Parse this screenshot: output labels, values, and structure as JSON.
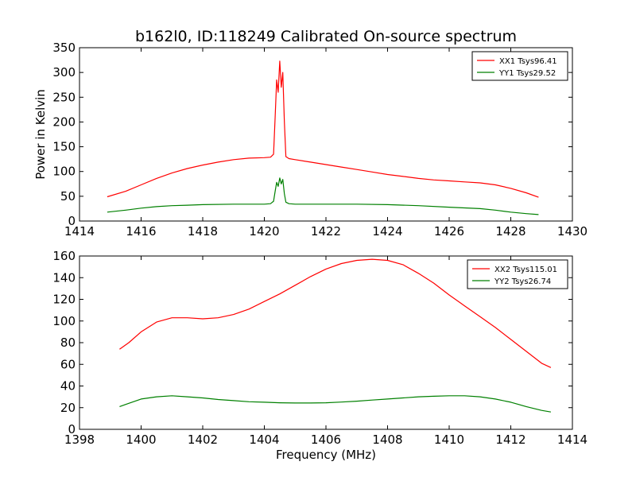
{
  "figure_title": "b162l0, ID:118249 Calibrated On-source spectrum",
  "chart_data": [
    {
      "type": "line",
      "title": "b162l0, ID:118249 Calibrated On-source spectrum",
      "xlabel": "",
      "ylabel": "Power in Kelvin",
      "xlim": [
        1414,
        1430
      ],
      "ylim": [
        0,
        350
      ],
      "xticks": [
        1414,
        1416,
        1418,
        1420,
        1422,
        1424,
        1426,
        1428,
        1430
      ],
      "yticks": [
        0,
        50,
        100,
        150,
        200,
        250,
        300,
        350
      ],
      "grid": false,
      "legend_position": "top-right",
      "series": [
        {
          "name": "XX1 Tsys96.41",
          "color": "#ff0000",
          "x": [
            1414.9,
            1415.5,
            1416,
            1416.5,
            1417,
            1417.5,
            1418,
            1418.5,
            1419,
            1419.5,
            1420,
            1420.2,
            1420.3,
            1420.35,
            1420.4,
            1420.45,
            1420.5,
            1420.55,
            1420.6,
            1420.65,
            1420.7,
            1420.8,
            1421,
            1421.5,
            1422,
            1422.5,
            1423,
            1423.5,
            1424,
            1424.5,
            1425,
            1425.5,
            1426,
            1426.5,
            1427,
            1427.5,
            1428,
            1428.5,
            1428.9
          ],
          "y": [
            49,
            60,
            73,
            86,
            97,
            106,
            113,
            119,
            124,
            127,
            128,
            129,
            135,
            210,
            285,
            260,
            323,
            270,
            300,
            200,
            130,
            126,
            124,
            119,
            114,
            109,
            104,
            99,
            94,
            90,
            86,
            83,
            81,
            79,
            77,
            73,
            66,
            57,
            48
          ]
        },
        {
          "name": "YY1 Tsys29.52",
          "color": "#008000",
          "x": [
            1414.9,
            1415.5,
            1416,
            1416.5,
            1417,
            1417.5,
            1418,
            1419,
            1420,
            1420.2,
            1420.3,
            1420.35,
            1420.4,
            1420.45,
            1420.5,
            1420.55,
            1420.6,
            1420.65,
            1420.7,
            1420.8,
            1421,
            1422,
            1423,
            1424,
            1425,
            1426,
            1427,
            1427.5,
            1428,
            1428.5,
            1428.9
          ],
          "y": [
            18,
            22,
            26,
            29,
            31,
            32,
            33,
            34,
            34,
            35,
            40,
            60,
            78,
            70,
            87,
            75,
            84,
            55,
            38,
            35,
            34,
            34,
            34,
            33,
            31,
            28,
            25,
            22,
            18,
            15,
            13
          ]
        }
      ]
    },
    {
      "type": "line",
      "title": "",
      "xlabel": "Frequency (MHz)",
      "ylabel": "",
      "xlim": [
        1398,
        1414
      ],
      "ylim": [
        0,
        160
      ],
      "xticks": [
        1398,
        1400,
        1402,
        1404,
        1406,
        1408,
        1410,
        1412,
        1414
      ],
      "yticks": [
        0,
        20,
        40,
        60,
        80,
        100,
        120,
        140,
        160
      ],
      "grid": false,
      "legend_position": "top-right",
      "series": [
        {
          "name": "XX2 Tsys115.01",
          "color": "#ff0000",
          "x": [
            1399.3,
            1399.6,
            1400,
            1400.5,
            1401,
            1401.5,
            1402,
            1402.5,
            1403,
            1403.5,
            1404,
            1404.5,
            1405,
            1405.5,
            1406,
            1406.5,
            1407,
            1407.5,
            1408,
            1408.5,
            1409,
            1409.5,
            1410,
            1410.5,
            1411,
            1411.5,
            1412,
            1412.5,
            1413,
            1413.3
          ],
          "y": [
            74,
            80,
            90,
            99,
            103,
            103,
            102,
            103,
            106,
            111,
            118,
            125,
            133,
            141,
            148,
            153,
            156,
            157,
            156,
            152,
            144,
            135,
            124,
            114,
            104,
            94,
            83,
            72,
            61,
            57
          ]
        },
        {
          "name": "YY2 Tsys26.74",
          "color": "#008000",
          "x": [
            1399.3,
            1399.6,
            1400,
            1400.5,
            1401,
            1401.5,
            1402,
            1402.5,
            1403,
            1403.5,
            1404,
            1404.5,
            1405,
            1405.5,
            1406,
            1406.5,
            1407,
            1407.5,
            1408,
            1408.5,
            1409,
            1409.5,
            1410,
            1410.5,
            1411,
            1411.5,
            1412,
            1412.5,
            1413,
            1413.3
          ],
          "y": [
            21,
            24,
            28,
            30,
            31,
            30,
            29,
            27.5,
            26.5,
            25.5,
            25,
            24.5,
            24.3,
            24.3,
            24.5,
            25.2,
            26,
            27,
            28,
            29,
            30,
            30.5,
            31,
            31,
            30,
            28,
            25,
            21,
            17.5,
            16
          ]
        }
      ]
    }
  ]
}
